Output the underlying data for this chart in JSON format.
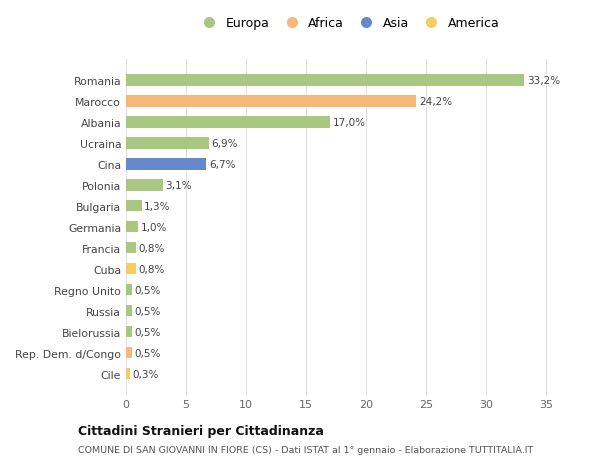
{
  "countries": [
    "Romania",
    "Marocco",
    "Albania",
    "Ucraina",
    "Cina",
    "Polonia",
    "Bulgaria",
    "Germania",
    "Francia",
    "Cuba",
    "Regno Unito",
    "Russia",
    "Bielorussia",
    "Rep. Dem. d/Congo",
    "Cile"
  ],
  "values": [
    33.2,
    24.2,
    17.0,
    6.9,
    6.7,
    3.1,
    1.3,
    1.0,
    0.8,
    0.8,
    0.5,
    0.5,
    0.5,
    0.5,
    0.3
  ],
  "labels": [
    "33,2%",
    "24,2%",
    "17,0%",
    "6,9%",
    "6,7%",
    "3,1%",
    "1,3%",
    "1,0%",
    "0,8%",
    "0,8%",
    "0,5%",
    "0,5%",
    "0,5%",
    "0,5%",
    "0,3%"
  ],
  "continents": [
    "Europa",
    "Africa",
    "Europa",
    "Europa",
    "Asia",
    "Europa",
    "Europa",
    "Europa",
    "Europa",
    "America",
    "Europa",
    "Europa",
    "Europa",
    "Africa",
    "America"
  ],
  "colors": {
    "Europa": "#a8c882",
    "Africa": "#f5b87a",
    "Asia": "#6688cc",
    "America": "#f5cc60"
  },
  "legend_order": [
    "Europa",
    "Africa",
    "Asia",
    "America"
  ],
  "title": "Cittadini Stranieri per Cittadinanza",
  "subtitle": "COMUNE DI SAN GIOVANNI IN FIORE (CS) - Dati ISTAT al 1° gennaio - Elaborazione TUTTITALIA.IT",
  "xlim": [
    0,
    37
  ],
  "xticks": [
    0,
    5,
    10,
    15,
    20,
    25,
    30,
    35
  ],
  "background_color": "#ffffff",
  "grid_color": "#e0e0e0"
}
